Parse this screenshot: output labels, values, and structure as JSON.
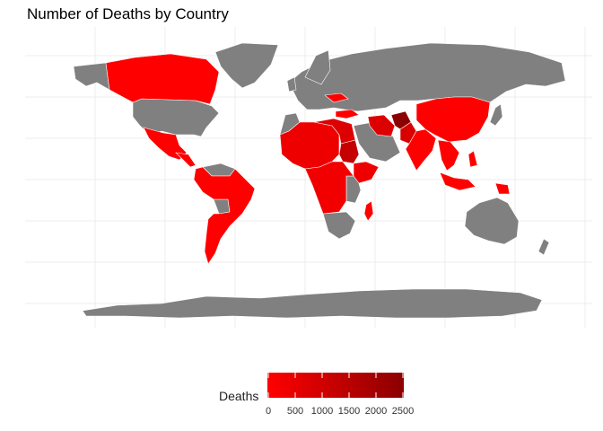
{
  "title": "Number of Deaths by Country",
  "legend": {
    "label": "Deaths",
    "ticks": [
      "0",
      "500",
      "1000",
      "1500",
      "2000",
      "2500"
    ],
    "low_color": "#ff0000",
    "high_color": "#8b0000"
  },
  "colors": {
    "no_data": "#808080",
    "border": "#ffffff",
    "grid": "#ececec"
  },
  "map": {
    "projection": "equirectangular",
    "grid": true,
    "colored_regions": [
      "Canada",
      "Mexico",
      "Central America",
      "South America",
      "Sahel and West Africa",
      "Sudan",
      "Horn of Africa",
      "Central Africa",
      "Madagascar",
      "Afghanistan",
      "Iran",
      "Pakistan",
      "India",
      "China",
      "Southeast Asia",
      "Indonesia",
      "Papua New Guinea",
      "Ukraine",
      "Turkey"
    ]
  },
  "chart_data": {
    "type": "choropleth",
    "title": "Number of Deaths by Country",
    "legend_title": "Deaths",
    "color_scale_range": [
      0,
      2500
    ],
    "legend_ticks": [
      0,
      500,
      1000,
      1500,
      2000,
      2500
    ]
  }
}
